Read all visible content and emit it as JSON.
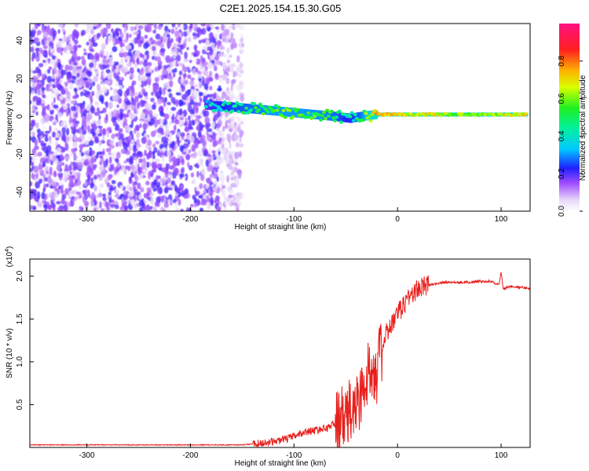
{
  "title": "C2E1.2025.154.15.30.G05",
  "colors": {
    "snr_line": "#e8201c",
    "spectrogram_low": "#e9ddf6",
    "spectrogram_mid": "#7a1ff0",
    "ridge_colors": [
      "#00d8ff",
      "#30ff30",
      "#e8ff00",
      "#ff2020"
    ]
  },
  "chart_data": [
    {
      "type": "heatmap",
      "title": "C2E1.2025.154.15.30.G05",
      "xlabel": "Height of straight line (km)",
      "ylabel": "Frequency (Hz)",
      "xlim": [
        -355,
        128
      ],
      "ylim": [
        -50,
        49
      ],
      "x_ticks": [
        -300,
        -200,
        -100,
        0,
        100
      ],
      "y_ticks": [
        -40,
        -20,
        0,
        20,
        40
      ],
      "colorbar": {
        "label": "Normalized spectral amplitude",
        "range": [
          0.0,
          1.0
        ],
        "ticks": [
          0.0,
          0.2,
          0.4,
          0.6,
          0.8
        ],
        "colormap": "rainbow (white-lavender-purple-blue-cyan-green-yellow-orange-red-magenta)"
      },
      "ridge": {
        "x": [
          -185,
          -160,
          -140,
          -120,
          -100,
          -80,
          -60,
          -45,
          -35,
          -20,
          0,
          20,
          40,
          60,
          80,
          100,
          125
        ],
        "frequency_hz": [
          6,
          5,
          4,
          3,
          2,
          1,
          0,
          -1,
          0,
          1,
          1,
          1,
          1,
          1,
          1,
          1,
          1
        ],
        "amplitude": [
          0.35,
          0.45,
          0.5,
          0.55,
          0.55,
          0.55,
          0.5,
          0.4,
          0.5,
          0.75,
          0.7,
          0.65,
          0.65,
          0.6,
          0.6,
          0.65,
          0.7
        ]
      },
      "noise_region_x": [
        -355,
        -150
      ],
      "grid": false
    },
    {
      "type": "line",
      "xlabel": "Height of straight line (km)",
      "ylabel": "SNR (10 * v/v)",
      "y_multiplier_label": "(x10",
      "y_multiplier_exp": "4",
      "xlim": [
        -355,
        128
      ],
      "ylim": [
        0,
        2.2
      ],
      "x_ticks": [
        -300,
        -200,
        -100,
        0,
        100
      ],
      "y_ticks": [
        0.5,
        1.0,
        1.5,
        2.0
      ],
      "series": [
        {
          "x": [
            -355,
            -300,
            -250,
            -200,
            -170,
            -150,
            -130,
            -110,
            -100,
            -90,
            -80,
            -70,
            -60,
            -50,
            -40,
            -30,
            -25,
            -20,
            -15,
            -10,
            0,
            10,
            20,
            30,
            40,
            50,
            60,
            70,
            80,
            90,
            98,
            100,
            102,
            110,
            128
          ],
          "y": [
            0.03,
            0.03,
            0.03,
            0.03,
            0.03,
            0.03,
            0.05,
            0.09,
            0.13,
            0.18,
            0.2,
            0.22,
            0.28,
            0.34,
            0.5,
            0.75,
            1.0,
            0.9,
            1.15,
            1.35,
            1.55,
            1.75,
            1.85,
            1.9,
            1.92,
            1.93,
            1.93,
            1.93,
            1.94,
            1.94,
            1.9,
            2.05,
            1.85,
            1.88,
            1.86
          ]
        }
      ],
      "grid": false
    }
  ]
}
